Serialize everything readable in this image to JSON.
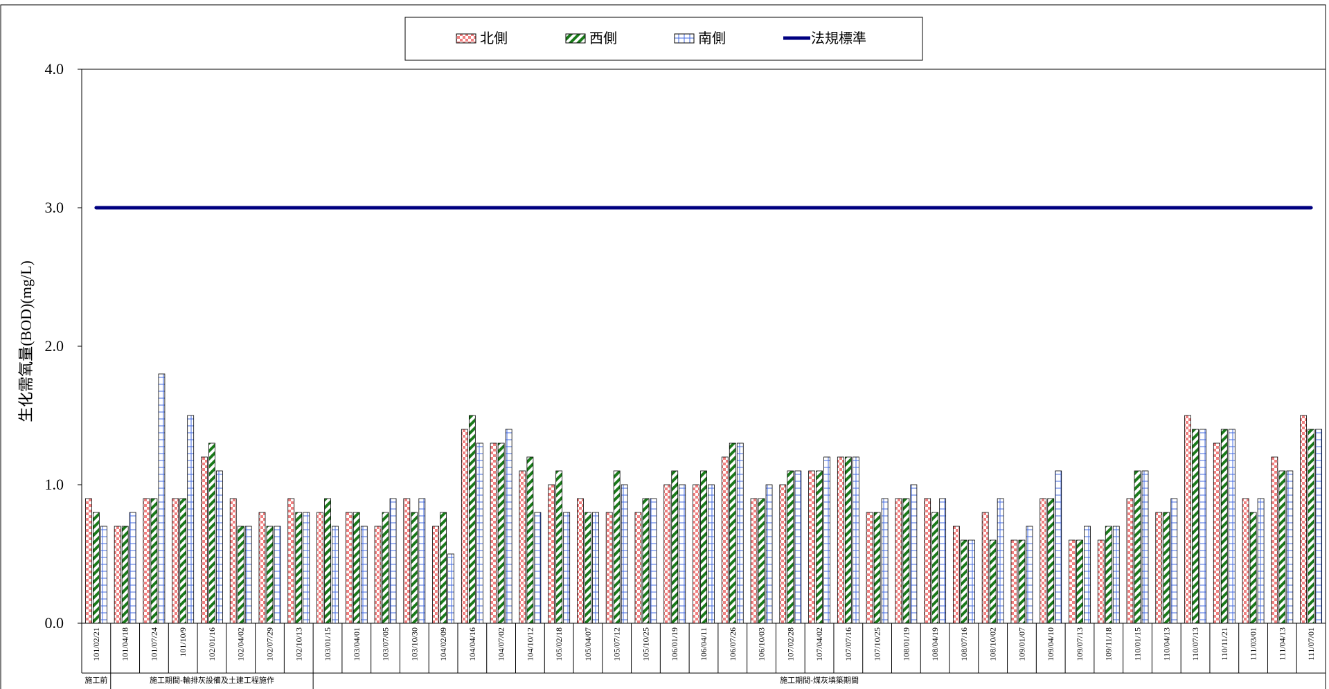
{
  "chart_data": {
    "type": "bar",
    "title": "",
    "xlabel": "",
    "ylabel": "生化需氧量(BOD)(mg/L)",
    "ylim": [
      0,
      4
    ],
    "yticks": [
      "0.0",
      "1.0",
      "2.0",
      "3.0",
      "4.0"
    ],
    "grid": false,
    "legend_position": "top-center",
    "categories": [
      "101/02/21",
      "101/04/18",
      "101/07/24",
      "101/10/9",
      "102/01/16",
      "102/04/02",
      "102/07/29",
      "102/10/13",
      "103/01/15",
      "103/04/01",
      "103/07/05",
      "103/10/30",
      "104/02/09",
      "104/04/16",
      "104/07/02",
      "104/10/12",
      "105/02/18",
      "105/04/07",
      "105/07/12",
      "105/10/25",
      "106/01/19",
      "106/04/11",
      "106/07/26",
      "106/10/03",
      "107/02/28",
      "107/04/02",
      "107/07/16",
      "107/10/25",
      "108/01/19",
      "108/04/19",
      "108/07/16",
      "108/10/02",
      "109/01/07",
      "109/04/10",
      "109/07/13",
      "109/11/18",
      "110/01/15",
      "110/04/13",
      "110/07/13",
      "110/11/21",
      "111/03/01",
      "111/04/13",
      "111/07/01"
    ],
    "series": [
      {
        "name": "北側",
        "color": "#f08080",
        "pattern": "checker",
        "values": [
          0.9,
          0.7,
          0.9,
          0.9,
          1.2,
          0.9,
          0.8,
          0.9,
          0.8,
          0.8,
          0.7,
          0.9,
          0.7,
          1.4,
          1.3,
          1.1,
          1.0,
          0.9,
          0.8,
          0.8,
          1.0,
          1.0,
          1.2,
          0.9,
          1.0,
          1.1,
          1.2,
          0.8,
          0.9,
          0.9,
          0.7,
          0.8,
          0.6,
          0.9,
          0.6,
          0.6,
          0.9,
          0.8,
          1.5,
          1.3,
          0.9,
          1.2,
          1.5
        ]
      },
      {
        "name": "西側",
        "color": "#1a7a1a",
        "pattern": "diagonal",
        "values": [
          0.8,
          0.7,
          0.9,
          0.9,
          1.3,
          0.7,
          0.7,
          0.8,
          0.9,
          0.8,
          0.8,
          0.8,
          0.8,
          1.5,
          1.3,
          1.2,
          1.1,
          0.8,
          1.1,
          0.9,
          1.1,
          1.1,
          1.3,
          0.9,
          1.1,
          1.1,
          1.2,
          0.8,
          0.9,
          0.8,
          0.6,
          0.6,
          0.6,
          0.9,
          0.6,
          0.7,
          1.1,
          0.8,
          1.4,
          1.4,
          0.8,
          1.1,
          1.4
        ]
      },
      {
        "name": "南側",
        "color": "#4169e1",
        "pattern": "grid",
        "values": [
          0.7,
          0.8,
          1.8,
          1.5,
          1.1,
          0.7,
          0.7,
          0.8,
          0.7,
          0.7,
          0.9,
          0.9,
          0.5,
          1.3,
          1.4,
          0.8,
          0.8,
          0.8,
          1.0,
          0.9,
          1.0,
          1.0,
          1.3,
          1.0,
          1.1,
          1.2,
          1.2,
          0.9,
          1.0,
          0.9,
          0.6,
          0.9,
          0.7,
          1.1,
          0.7,
          0.7,
          1.1,
          0.9,
          1.4,
          1.4,
          0.9,
          1.1,
          1.4
        ]
      }
    ],
    "reference_line": {
      "name": "法規標準",
      "value": 3.0,
      "color": "#000080"
    },
    "phases": [
      {
        "label": "施工前",
        "start": 0,
        "end": 0
      },
      {
        "label": "施工期間-輸排灰設備及土建工程施作",
        "start": 1,
        "end": 7
      },
      {
        "label": "施工期間-煤灰填築期間",
        "start": 8,
        "end": 42
      }
    ]
  }
}
